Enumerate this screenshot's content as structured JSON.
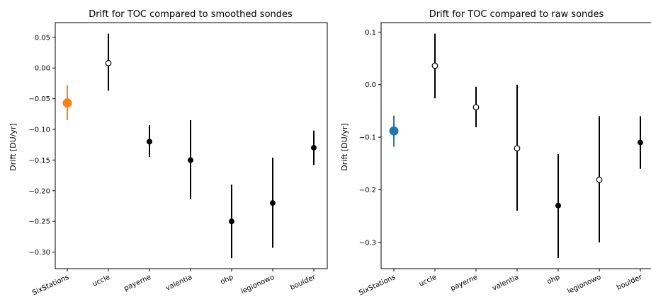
{
  "chart_data": [
    {
      "type": "errorbar",
      "title": "Drift for TOC compared to smoothed sondes",
      "xlabel": "",
      "ylabel": "Drift [DU/yr]",
      "categories": [
        "SixStations",
        "uccle",
        "payerne",
        "valentia",
        "ohp",
        "legionowo",
        "boulder"
      ],
      "ylim": [
        -0.327,
        0.074
      ],
      "yticks": [
        0.05,
        0.0,
        -0.05,
        -0.1,
        -0.15,
        -0.2,
        -0.25,
        -0.3
      ],
      "ytick_labels": [
        "0.05",
        "0.00",
        "−0.05",
        "−0.10",
        "−0.15",
        "−0.20",
        "−0.25",
        "−0.30"
      ],
      "grid": false,
      "points": [
        {
          "category": "SixStations",
          "value": -0.057,
          "err_low": -0.085,
          "err_high": -0.028,
          "marker": "filled-large",
          "color": "#ff7f0e"
        },
        {
          "category": "uccle",
          "value": 0.008,
          "err_low": -0.037,
          "err_high": 0.056,
          "marker": "open",
          "color": "#000000"
        },
        {
          "category": "payerne",
          "value": -0.12,
          "err_low": -0.145,
          "err_high": -0.093,
          "marker": "filled",
          "color": "#000000"
        },
        {
          "category": "valentia",
          "value": -0.15,
          "err_low": -0.214,
          "err_high": -0.085,
          "marker": "filled",
          "color": "#000000"
        },
        {
          "category": "ohp",
          "value": -0.25,
          "err_low": -0.31,
          "err_high": -0.19,
          "marker": "filled",
          "color": "#000000"
        },
        {
          "category": "legionowo",
          "value": -0.22,
          "err_low": -0.293,
          "err_high": -0.146,
          "marker": "filled",
          "color": "#000000"
        },
        {
          "category": "boulder",
          "value": -0.13,
          "err_low": -0.158,
          "err_high": -0.102,
          "marker": "filled",
          "color": "#000000"
        }
      ]
    },
    {
      "type": "errorbar",
      "title": "Drift for TOC compared to raw sondes",
      "xlabel": "",
      "ylabel": "Drift [DU/yr]",
      "categories": [
        "SixStations",
        "uccle",
        "payerne",
        "valentia",
        "ohp",
        "legionowo",
        "boulder"
      ],
      "ylim": [
        -0.35,
        0.118
      ],
      "yticks": [
        0.1,
        0.0,
        -0.1,
        -0.2,
        -0.3
      ],
      "ytick_labels": [
        "0.1",
        "0.0",
        "−0.1",
        "−0.2",
        "−0.3"
      ],
      "grid": false,
      "points": [
        {
          "category": "SixStations",
          "value": -0.088,
          "err_low": -0.118,
          "err_high": -0.059,
          "marker": "filled-large",
          "color": "#1f77b4"
        },
        {
          "category": "uccle",
          "value": 0.036,
          "err_low": -0.026,
          "err_high": 0.097,
          "marker": "open",
          "color": "#000000"
        },
        {
          "category": "payerne",
          "value": -0.043,
          "err_low": -0.081,
          "err_high": -0.004,
          "marker": "open",
          "color": "#000000"
        },
        {
          "category": "valentia",
          "value": -0.121,
          "err_low": -0.24,
          "err_high": 0.0,
          "marker": "open",
          "color": "#000000"
        },
        {
          "category": "ohp",
          "value": -0.23,
          "err_low": -0.33,
          "err_high": -0.132,
          "marker": "filled",
          "color": "#000000"
        },
        {
          "category": "legionowo",
          "value": -0.181,
          "err_low": -0.3,
          "err_high": -0.06,
          "marker": "open",
          "color": "#000000"
        },
        {
          "category": "boulder",
          "value": -0.11,
          "err_low": -0.16,
          "err_high": -0.06,
          "marker": "filled",
          "color": "#000000"
        }
      ]
    }
  ]
}
